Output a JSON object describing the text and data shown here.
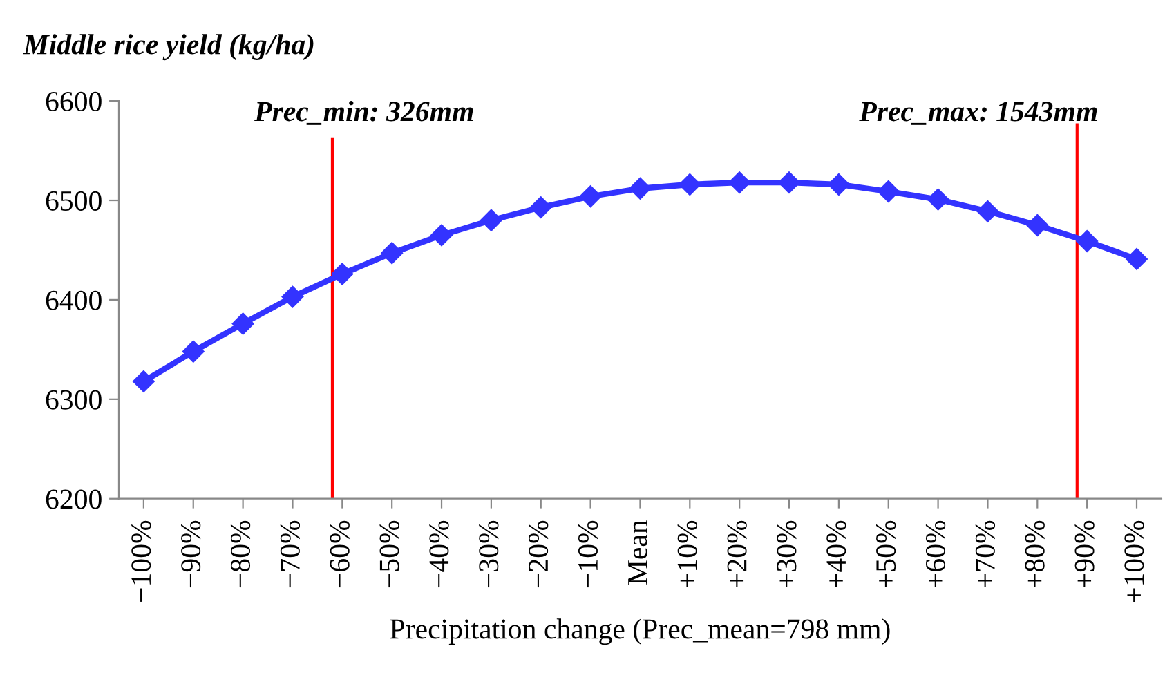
{
  "chart_data": {
    "type": "line",
    "ylabel": "Middle rice yield (kg/ha)",
    "xlabel": "Precipitation change (Prec_mean=798 mm)",
    "x": [
      -100,
      -90,
      -80,
      -70,
      -60,
      -50,
      -40,
      -30,
      -20,
      -10,
      0,
      10,
      20,
      30,
      40,
      50,
      60,
      70,
      80,
      90,
      100
    ],
    "series": [
      {
        "color": "#3333ff",
        "values": [
          6318,
          6348,
          6376,
          6403,
          6426,
          6447,
          6465,
          6480,
          6493,
          6504,
          6512,
          6516,
          6518,
          6518,
          6516,
          6509,
          6501,
          6489,
          6475,
          6459,
          6441
        ]
      }
    ],
    "xlim": [
      -105,
      105
    ],
    "xticks": [
      {
        "value": -100,
        "label": "−100%"
      },
      {
        "value": -90,
        "label": "−90%"
      },
      {
        "value": -80,
        "label": "−80%"
      },
      {
        "value": -70,
        "label": "−70%"
      },
      {
        "value": -60,
        "label": "−60%"
      },
      {
        "value": -50,
        "label": "−50%"
      },
      {
        "value": -40,
        "label": "−40%"
      },
      {
        "value": -30,
        "label": "−30%"
      },
      {
        "value": -20,
        "label": "−20%"
      },
      {
        "value": -10,
        "label": "−10%"
      },
      {
        "value": 0,
        "label": "Mean"
      },
      {
        "value": 10,
        "label": "+10%"
      },
      {
        "value": 20,
        "label": "+20%"
      },
      {
        "value": 30,
        "label": "+30%"
      },
      {
        "value": 40,
        "label": "+40%"
      },
      {
        "value": 50,
        "label": "+50%"
      },
      {
        "value": 60,
        "label": "+60%"
      },
      {
        "value": 70,
        "label": "+70%"
      },
      {
        "value": 80,
        "label": "+80%"
      },
      {
        "value": 90,
        "label": "+90%"
      },
      {
        "value": 100,
        "label": "+100%"
      }
    ],
    "ylim": [
      6200,
      6600
    ],
    "yticks": [
      6200,
      6300,
      6400,
      6500,
      6600
    ],
    "ref_lines": [
      {
        "axis": "x",
        "value": -62,
        "color": "#ff0000"
      },
      {
        "axis": "x",
        "value": 88,
        "color": "#ff0000"
      }
    ],
    "annotations": [
      "Prec_min: 326mm",
      "Prec_max: 1543mm"
    ],
    "marker": "diamond",
    "line_style": "solid",
    "grid": false,
    "legend": false
  }
}
